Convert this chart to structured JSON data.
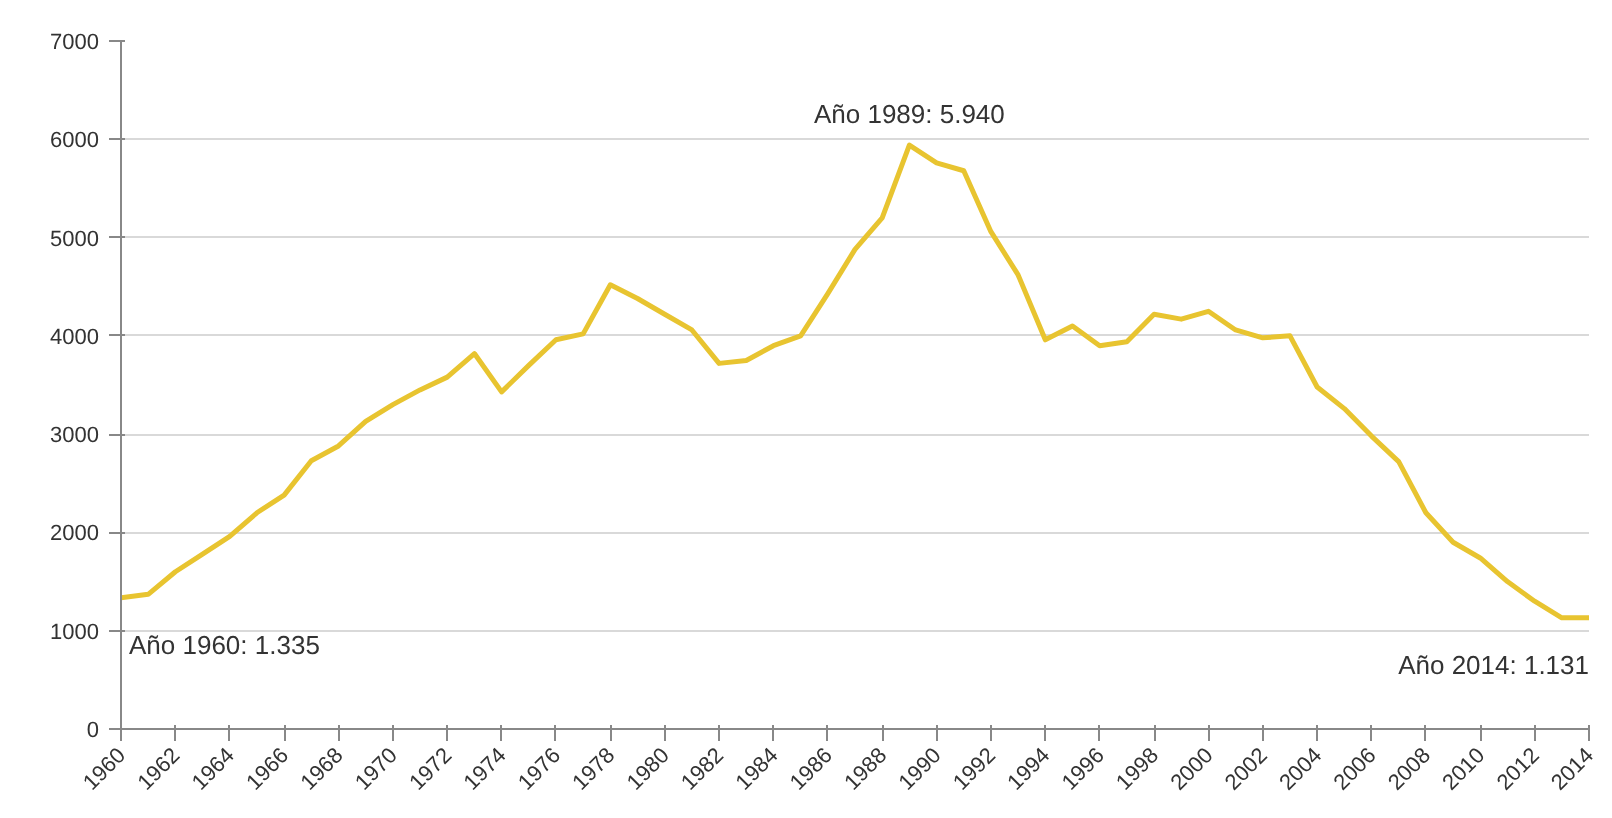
{
  "chart_data": {
    "type": "line",
    "x": [
      1960,
      1961,
      1962,
      1963,
      1964,
      1965,
      1966,
      1967,
      1968,
      1969,
      1970,
      1971,
      1972,
      1973,
      1974,
      1975,
      1976,
      1977,
      1978,
      1979,
      1980,
      1981,
      1982,
      1983,
      1984,
      1985,
      1986,
      1987,
      1988,
      1989,
      1990,
      1991,
      1992,
      1993,
      1994,
      1995,
      1996,
      1997,
      1998,
      1999,
      2000,
      2001,
      2002,
      2003,
      2004,
      2005,
      2006,
      2007,
      2008,
      2009,
      2010,
      2011,
      2012,
      2013,
      2014
    ],
    "series": [
      {
        "color": "#e8c430",
        "values": [
          1335,
          1370,
          1600,
          1780,
          1960,
          2200,
          2380,
          2730,
          2880,
          3130,
          3300,
          3450,
          3580,
          3820,
          3430,
          3700,
          3960,
          4020,
          4520,
          4380,
          4220,
          4060,
          3720,
          3750,
          3900,
          4000,
          4430,
          4880,
          5200,
          5940,
          5760,
          5680,
          5060,
          4620,
          3960,
          4100,
          3900,
          3940,
          4220,
          4170,
          4250,
          4060,
          3980,
          4000,
          3480,
          3260,
          2980,
          2720,
          2200,
          1900,
          1740,
          1500,
          1300,
          1131,
          1131
        ]
      }
    ],
    "xlim": [
      1960,
      2014
    ],
    "xticks": [
      1960,
      1962,
      1964,
      1966,
      1968,
      1970,
      1972,
      1974,
      1976,
      1978,
      1980,
      1982,
      1984,
      1986,
      1988,
      1990,
      1992,
      1994,
      1996,
      1998,
      2000,
      2002,
      2004,
      2006,
      2008,
      2010,
      2012,
      2014
    ],
    "ylim": [
      0,
      7000
    ],
    "yticks": [
      0,
      1000,
      2000,
      3000,
      4000,
      5000,
      6000,
      7000
    ],
    "grid": "y",
    "marker": "none",
    "line_style": "solid",
    "annotations": [
      {
        "text": "Año 1960: 1.335",
        "x": 1960,
        "y": 1335
      },
      {
        "text": "Año 1989: 5.940",
        "x": 1989,
        "y": 5940
      },
      {
        "text": "Año 2014: 1.131",
        "x": 2014,
        "y": 1131
      }
    ]
  }
}
